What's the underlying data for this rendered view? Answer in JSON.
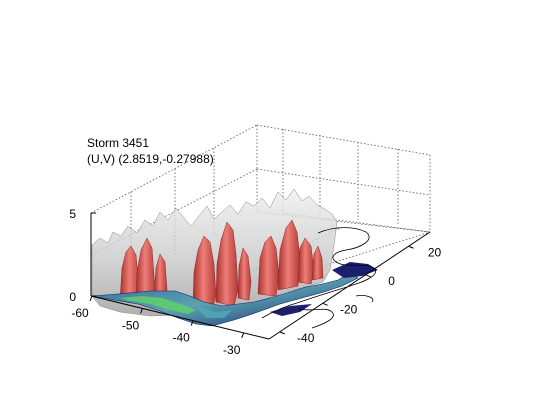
{
  "header": {
    "title": "Storm 3451",
    "subtitle": "(U,V) (2.8519,-0.27988)"
  },
  "chart_data": {
    "type": "surface3d",
    "title": "Storm 3451",
    "subtitle": "(U,V) (2.8519,-0.27988)",
    "xlabel": "",
    "ylabel": "",
    "zlabel": "",
    "x_ticks": [
      "-60",
      "-50",
      "-40",
      "-30"
    ],
    "y_ticks": [
      "-40",
      "-20",
      "0",
      "20"
    ],
    "z_ticks": [
      "0",
      "5"
    ],
    "xlim": [
      -60,
      -25
    ],
    "ylim": [
      -45,
      30
    ],
    "zlim": [
      0,
      5
    ],
    "grid": true,
    "colors": {
      "outer_isosurface": "#c8c8c8",
      "inner_isosurface": "#d9534f",
      "base_slice_low": "#1a1f6e",
      "base_slice_mid": "#3f7fa8",
      "base_slice_high": "#5fd06a",
      "grid": "#555555"
    }
  }
}
